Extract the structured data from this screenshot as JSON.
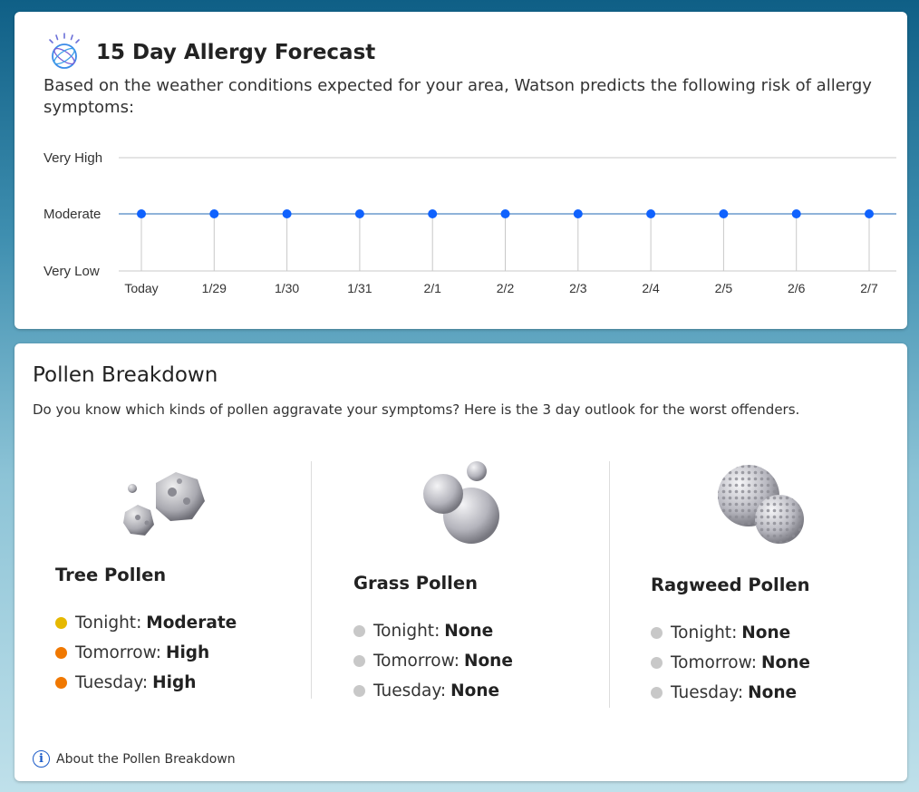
{
  "forecast": {
    "title": "15 Day Allergy Forecast",
    "description": "Based on the weather conditions expected for your area, Watson predicts the following risk of allergy symptoms:"
  },
  "chart_data": {
    "type": "line",
    "title": "",
    "xlabel": "",
    "ylabel": "",
    "y_levels": [
      "Very Low",
      "Moderate",
      "Very High"
    ],
    "categories": [
      "Today",
      "1/29",
      "1/30",
      "1/31",
      "2/1",
      "2/2",
      "2/3",
      "2/4",
      "2/5",
      "2/6",
      "2/7"
    ],
    "values": [
      "Moderate",
      "Moderate",
      "Moderate",
      "Moderate",
      "Moderate",
      "Moderate",
      "Moderate",
      "Moderate",
      "Moderate",
      "Moderate",
      "Moderate"
    ],
    "grid": true,
    "line_color": "#8fb3d9",
    "point_color": "#0f62fe"
  },
  "pollen": {
    "title": "Pollen Breakdown",
    "description": "Do you know which kinds of pollen aggravate your symptoms? Here is the 3 day outlook for the worst offenders.",
    "types": [
      {
        "name": "Tree Pollen",
        "image_icon": "tree-pollen-icon",
        "rows": [
          {
            "day": "Tonight:",
            "level": "Moderate",
            "color": "#e6b800"
          },
          {
            "day": "Tomorrow:",
            "level": "High",
            "color": "#f07800"
          },
          {
            "day": "Tuesday:",
            "level": "High",
            "color": "#f07800"
          }
        ]
      },
      {
        "name": "Grass Pollen",
        "image_icon": "grass-pollen-icon",
        "rows": [
          {
            "day": "Tonight:",
            "level": "None",
            "color": "#c8c8c8"
          },
          {
            "day": "Tomorrow:",
            "level": "None",
            "color": "#c8c8c8"
          },
          {
            "day": "Tuesday:",
            "level": "None",
            "color": "#c8c8c8"
          }
        ]
      },
      {
        "name": "Ragweed Pollen",
        "image_icon": "ragweed-pollen-icon",
        "rows": [
          {
            "day": "Tonight:",
            "level": "None",
            "color": "#c8c8c8"
          },
          {
            "day": "Tomorrow:",
            "level": "None",
            "color": "#c8c8c8"
          },
          {
            "day": "Tuesday:",
            "level": "None",
            "color": "#c8c8c8"
          }
        ]
      }
    ],
    "about_link": "About the Pollen Breakdown"
  }
}
